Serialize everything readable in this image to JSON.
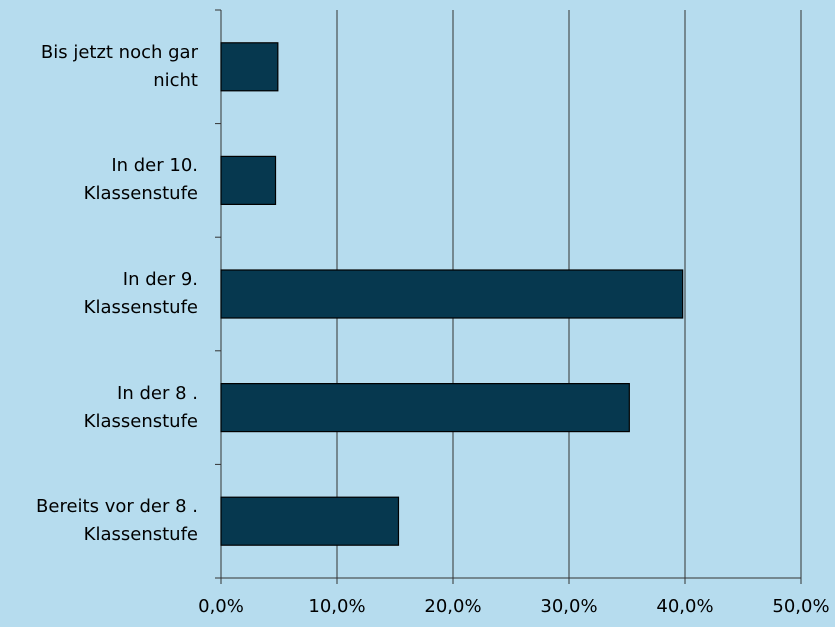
{
  "chart_data": {
    "type": "hbar",
    "categories": [
      "Bis jetzt noch gar\nnicht",
      "In der 10.\nKlassenstufe",
      "In der 9.\nKlassenstufe",
      "In der 8 .\nKlassenstufe",
      "Bereits vor der 8 .\nKlassenstufe"
    ],
    "values": [
      4.9,
      4.7,
      39.8,
      35.2,
      15.3
    ],
    "color": "#06384f",
    "xlim": [
      0,
      50
    ],
    "xticks": [
      {
        "value": 0,
        "label": "0,0%"
      },
      {
        "value": 10,
        "label": "10,0%"
      },
      {
        "value": 20,
        "label": "20,0%"
      },
      {
        "value": 30,
        "label": "30,0%"
      },
      {
        "value": 40,
        "label": "40,0%"
      },
      {
        "value": 50,
        "label": "50,0%"
      }
    ],
    "grid": true
  }
}
